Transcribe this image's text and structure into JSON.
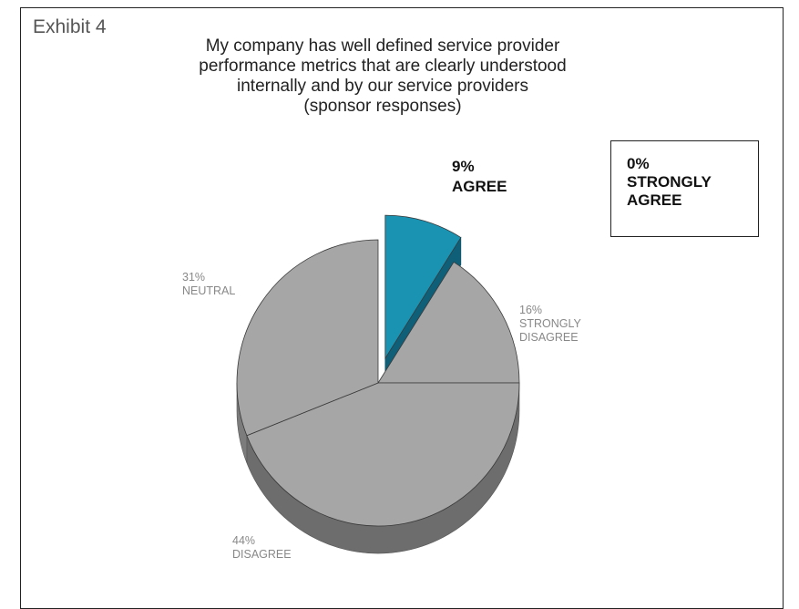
{
  "exhibit_label": "Exhibit 4",
  "chart_data": {
    "type": "pie",
    "title_lines": [
      "My company has well defined service provider",
      "performance metrics that are clearly understood",
      "internally and by our service providers",
      "(sponsor responses)"
    ],
    "slices": [
      {
        "label": "AGREE",
        "value": 9,
        "pct_text": "9%",
        "color": "#1a93b3",
        "side_color": "#0f5f78",
        "exploded": true
      },
      {
        "label": "STRONGLY DISAGREE",
        "value": 16,
        "pct_text": "16%",
        "color": "#a6a6a6",
        "side_color": "#777777",
        "exploded": false
      },
      {
        "label": "DISAGREE",
        "value": 44,
        "pct_text": "44%",
        "color": "#a6a6a6",
        "side_color": "#6d6d6d",
        "exploded": false
      },
      {
        "label": "NEUTRAL",
        "value": 31,
        "pct_text": "31%",
        "color": "#a6a6a6",
        "side_color": "#7c7c7c",
        "exploded": false
      }
    ],
    "callout": {
      "pct_text": "0%",
      "label": "STRONGLY AGREE",
      "value": 0
    }
  }
}
